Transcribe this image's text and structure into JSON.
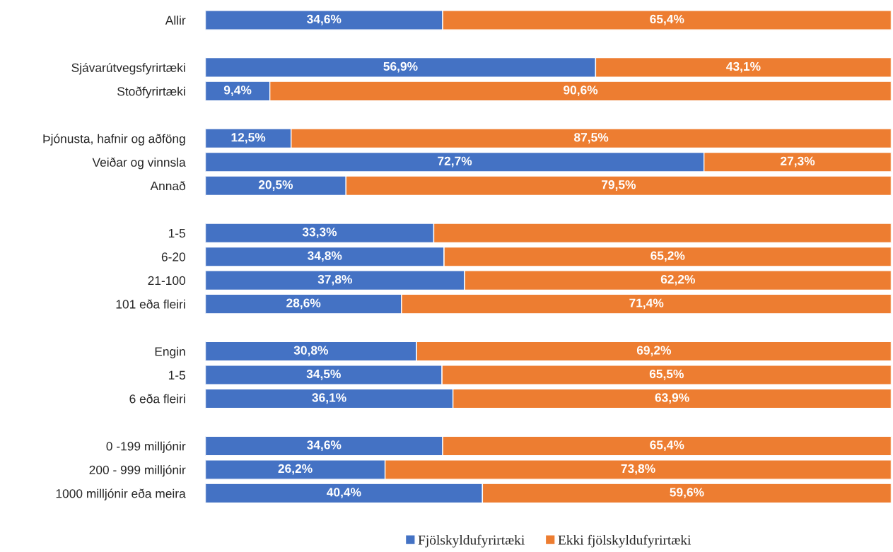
{
  "chart_data": {
    "type": "bar",
    "orientation": "horizontal",
    "stacked": true,
    "categories": [
      "Allir",
      null,
      "Sjávarútvegsfyrirtæki",
      "Stoðfyrirtæki",
      null,
      "Þjónusta, hafnir og aðföng",
      "Veiðar og vinnsla",
      "Annað",
      null,
      "1-5",
      "6-20",
      "21-100",
      "101 eða fleiri",
      null,
      "Engin",
      "1-5",
      "6 eða fleiri",
      null,
      "0 -199 milljónir",
      "200 - 999 milljónir",
      "1000 milljónir eða meira"
    ],
    "series": [
      {
        "name": "Fjölskyldufyrirtæki",
        "color": "#4472c4",
        "values": [
          34.6,
          null,
          56.9,
          9.4,
          null,
          12.5,
          72.7,
          20.5,
          null,
          33.3,
          34.8,
          37.8,
          28.6,
          null,
          30.8,
          34.5,
          36.1,
          null,
          34.6,
          26.2,
          40.4
        ],
        "value_labels": [
          "34,6%",
          null,
          "56,9%",
          "9,4%",
          null,
          "12,5%",
          "72,7%",
          "20,5%",
          null,
          "33,3%",
          "34,8%",
          "37,8%",
          "28,6%",
          null,
          "30,8%",
          "34,5%",
          "36,1%",
          null,
          "34,6%",
          "26,2%",
          "40,4%"
        ]
      },
      {
        "name": "Ekki fjölskyldufyrirtæki",
        "color": "#ed7d31",
        "values": [
          65.4,
          null,
          43.1,
          90.6,
          null,
          87.5,
          27.3,
          79.5,
          null,
          66.7,
          65.2,
          62.2,
          71.4,
          null,
          69.2,
          65.5,
          63.9,
          null,
          65.4,
          73.8,
          59.6
        ],
        "value_labels": [
          "65,4%",
          null,
          "43,1%",
          "90,6%",
          null,
          "87,5%",
          "27,3%",
          "79,5%",
          null,
          null,
          "65,2%",
          "62,2%",
          "71,4%",
          null,
          "69,2%",
          "65,5%",
          "63,9%",
          null,
          "65,4%",
          "73,8%",
          "59,6%"
        ]
      }
    ],
    "xlim": [
      0,
      100
    ],
    "tick_labels": "y",
    "legend": "bottom",
    "grid": false
  }
}
